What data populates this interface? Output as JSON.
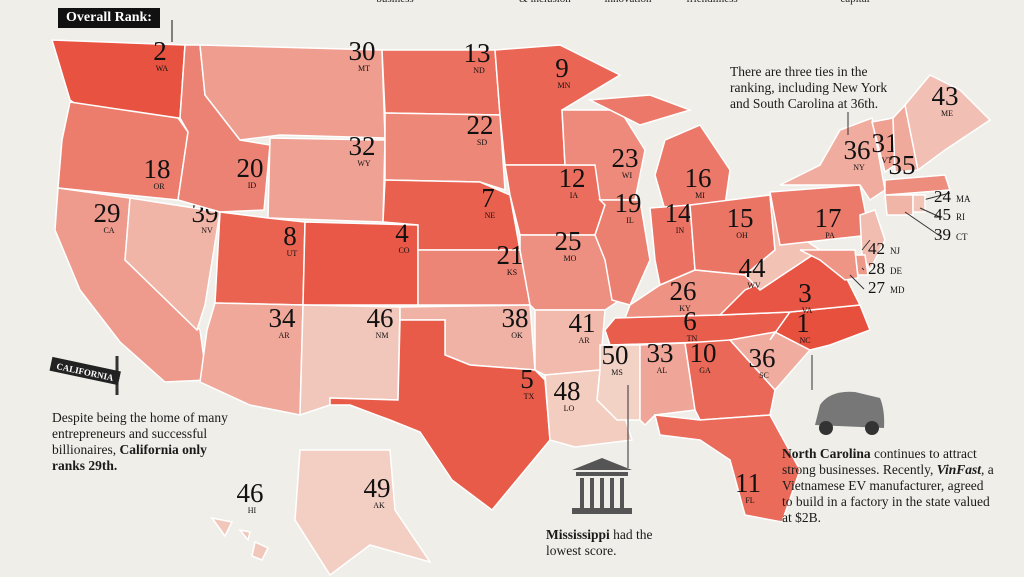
{
  "header": {
    "top_labels": [
      "business",
      "& inclusion",
      "innovation",
      "friendliness",
      "capital"
    ],
    "rank_label": "Overall Rank:"
  },
  "states": [
    {
      "rank": 2,
      "abbr": "WA"
    },
    {
      "rank": 18,
      "abbr": "OR"
    },
    {
      "rank": 29,
      "abbr": "CA"
    },
    {
      "rank": 39,
      "abbr": "NV"
    },
    {
      "rank": 20,
      "abbr": "ID"
    },
    {
      "rank": 30,
      "abbr": "MT"
    },
    {
      "rank": 32,
      "abbr": "WY"
    },
    {
      "rank": 8,
      "abbr": "UT"
    },
    {
      "rank": 4,
      "abbr": "CO"
    },
    {
      "rank": 34,
      "abbr": "AR"
    },
    {
      "rank": 46,
      "abbr": "NM"
    },
    {
      "rank": 13,
      "abbr": "ND"
    },
    {
      "rank": 22,
      "abbr": "SD"
    },
    {
      "rank": 7,
      "abbr": "NE"
    },
    {
      "rank": 21,
      "abbr": "KS"
    },
    {
      "rank": 38,
      "abbr": "OK"
    },
    {
      "rank": 5,
      "abbr": "TX"
    },
    {
      "rank": 9,
      "abbr": "MN"
    },
    {
      "rank": 12,
      "abbr": "IA"
    },
    {
      "rank": 25,
      "abbr": "MO"
    },
    {
      "rank": 41,
      "abbr": "AR"
    },
    {
      "rank": 48,
      "abbr": "LO"
    },
    {
      "rank": 23,
      "abbr": "WI"
    },
    {
      "rank": 19,
      "abbr": "IL"
    },
    {
      "rank": 16,
      "abbr": "MI"
    },
    {
      "rank": 14,
      "abbr": "IN"
    },
    {
      "rank": 15,
      "abbr": "OH"
    },
    {
      "rank": 26,
      "abbr": "KY"
    },
    {
      "rank": 6,
      "abbr": "TN"
    },
    {
      "rank": 50,
      "abbr": "MS"
    },
    {
      "rank": 33,
      "abbr": "AL"
    },
    {
      "rank": 10,
      "abbr": "GA"
    },
    {
      "rank": 11,
      "abbr": "FL"
    },
    {
      "rank": 36,
      "abbr": "SC"
    },
    {
      "rank": 1,
      "abbr": "NC"
    },
    {
      "rank": 3,
      "abbr": "VA"
    },
    {
      "rank": 44,
      "abbr": "WV"
    },
    {
      "rank": 17,
      "abbr": "PA"
    },
    {
      "rank": 36,
      "abbr": "NY"
    },
    {
      "rank": 31,
      "abbr": "VT"
    },
    {
      "rank": 35,
      "abbr": "NH"
    },
    {
      "rank": 43,
      "abbr": "ME"
    },
    {
      "rank": 24,
      "abbr": "MA"
    },
    {
      "rank": 39,
      "abbr": "CT"
    },
    {
      "rank": 45,
      "abbr": "RI"
    },
    {
      "rank": 42,
      "abbr": "NJ"
    },
    {
      "rank": 28,
      "abbr": "DE"
    },
    {
      "rank": 27,
      "abbr": "MD"
    },
    {
      "rank": 49,
      "abbr": "AK"
    },
    {
      "rank": 46,
      "abbr": "HI"
    }
  ],
  "notes": {
    "california": {
      "text": "Despite being the home of many entrepreneurs and successful billionaires, ",
      "bold": "California only ranks 29th.",
      "sign": "CALIFORNIA"
    },
    "new_york": {
      "text": "There are three ties in the ranking, including New York and South Carolina at 36th."
    },
    "north_carolina": {
      "bold": "North Carolina",
      "text1": " continues to attract strong businesses. Recently, ",
      "brand": "VinFast",
      "text2": ", a Vietnamese EV manufacturer, agreed to build in a factory in the state valued at $2B."
    },
    "mississippi": {
      "bold": "Mississippi",
      "text": " had the lowest score."
    }
  }
}
